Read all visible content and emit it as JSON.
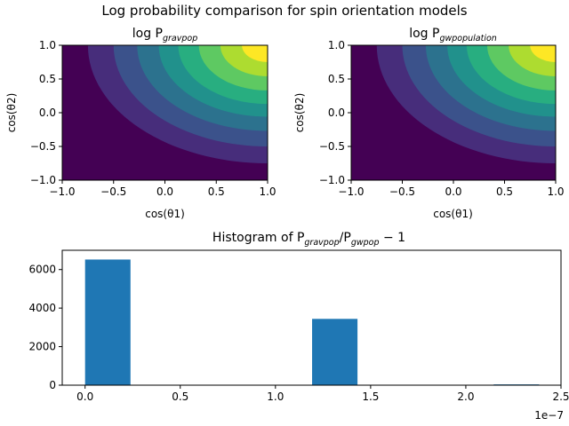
{
  "figure": {
    "suptitle": "Log probability comparison for spin orientation models"
  },
  "chart_data": [
    {
      "type": "heatmap",
      "title_prefix": "log P",
      "title_subscript": "gravpop",
      "xlabel": "cos(θ1)",
      "ylabel": "cos(θ2)",
      "xlim": [
        -1.0,
        1.0
      ],
      "ylim": [
        -1.0,
        1.0
      ],
      "xticks": [
        "−1.0",
        "−0.5",
        "0.0",
        "0.5",
        "1.0"
      ],
      "yticks": [
        "−1.0",
        "−0.5",
        "0.0",
        "0.5",
        "1.0"
      ],
      "colormap": [
        "#440154",
        "#472d7b",
        "#3b528b",
        "#2c728e",
        "#21918c",
        "#28ae80",
        "#5ec962",
        "#addc30",
        "#fde725"
      ],
      "contour_levels": 8,
      "peak": [
        1.0,
        1.0
      ]
    },
    {
      "type": "heatmap",
      "title_prefix": "log P",
      "title_subscript": "gwpopulation",
      "xlabel": "cos(θ1)",
      "ylabel": "cos(θ2)",
      "xlim": [
        -1.0,
        1.0
      ],
      "ylim": [
        -1.0,
        1.0
      ],
      "xticks": [
        "−1.0",
        "−0.5",
        "0.0",
        "0.5",
        "1.0"
      ],
      "yticks": [
        "−1.0",
        "−0.5",
        "0.0",
        "0.5",
        "1.0"
      ],
      "colormap": [
        "#440154",
        "#472d7b",
        "#3b528b",
        "#2c728e",
        "#21918c",
        "#28ae80",
        "#5ec962",
        "#addc30",
        "#fde725"
      ],
      "contour_levels": 8,
      "peak": [
        1.0,
        1.0
      ]
    },
    {
      "type": "bar",
      "title_prefix": "Histogram of P",
      "title_sub1": "gravpop",
      "title_mid": "/P",
      "title_sub2": "gwpop",
      "title_suffix": " − 1",
      "x_scale_label": "1e−7",
      "xlim": [
        -0.12,
        2.5
      ],
      "ylim": [
        0,
        7000
      ],
      "xticks": [
        "0.0",
        "0.5",
        "1.0",
        "1.5",
        "2.0",
        "2.5"
      ],
      "xtick_values": [
        0.0,
        0.5,
        1.0,
        1.5,
        2.0,
        2.5
      ],
      "yticks": [
        "0",
        "2000",
        "4000",
        "6000"
      ],
      "ytick_values": [
        0,
        2000,
        4000,
        6000
      ],
      "bin_edges": [
        0.0,
        0.2385,
        0.477,
        0.7155,
        0.954,
        1.1925,
        1.431,
        1.6695,
        1.908,
        2.1465,
        2.385
      ],
      "values": [
        6520,
        0,
        0,
        0,
        0,
        3440,
        0,
        0,
        0,
        40
      ],
      "color": "#1f77b4"
    }
  ]
}
